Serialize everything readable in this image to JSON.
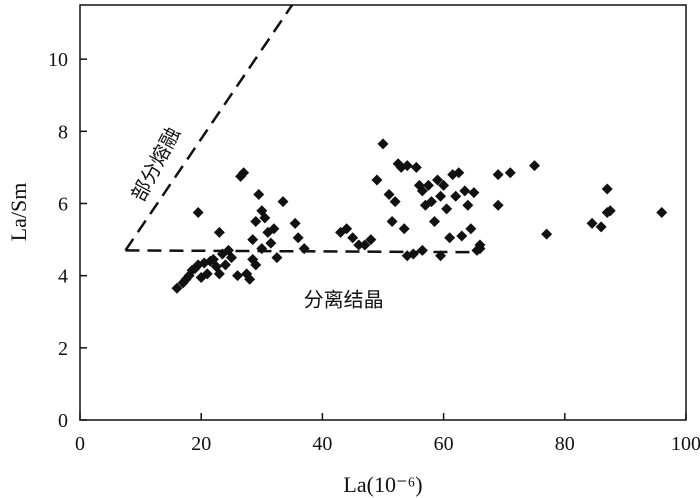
{
  "chart_data": {
    "type": "scatter",
    "xlabel": "La(10⁻⁶)",
    "ylabel": "La/Sm",
    "xlim": [
      0,
      100
    ],
    "ylim": [
      0,
      11.5
    ],
    "x_ticks": [
      "0",
      "20",
      "40",
      "60",
      "80",
      "100"
    ],
    "y_ticks": [
      "0",
      "2",
      "4",
      "6",
      "8",
      "10"
    ],
    "x_tick_values": [
      0,
      20,
      40,
      60,
      80,
      100
    ],
    "y_tick_values": [
      0,
      2,
      4,
      6,
      8,
      10
    ],
    "marker_color": "#111111",
    "reference_lines": [
      {
        "label": "部分熔融",
        "style": "dashed",
        "points": [
          [
            7.5,
            4.7
          ],
          [
            35,
            11.5
          ]
        ]
      },
      {
        "label": "分离结晶",
        "style": "dashed",
        "points": [
          [
            7.5,
            4.7
          ],
          [
            65,
            4.65
          ]
        ]
      }
    ],
    "annotations": [
      {
        "text": "部分熔融",
        "x": 13.5,
        "y": 7.0,
        "rotate": -62
      },
      {
        "text": "分离结晶",
        "x": 43.5,
        "y": 3.15,
        "rotate": 0
      }
    ],
    "points": [
      [
        16,
        3.65
      ],
      [
        17,
        3.8
      ],
      [
        17.5,
        3.9
      ],
      [
        18,
        4.0
      ],
      [
        18.5,
        4.15
      ],
      [
        19,
        4.2
      ],
      [
        19.5,
        4.3
      ],
      [
        20,
        3.95
      ],
      [
        20.5,
        4.35
      ],
      [
        21,
        4.05
      ],
      [
        21.5,
        4.4
      ],
      [
        22,
        4.45
      ],
      [
        22.5,
        4.25
      ],
      [
        23,
        4.05
      ],
      [
        23.5,
        4.6
      ],
      [
        24,
        4.3
      ],
      [
        24.5,
        4.7
      ],
      [
        25,
        4.5
      ],
      [
        19.5,
        5.75
      ],
      [
        23,
        5.2
      ],
      [
        26,
        4.0
      ],
      [
        26.5,
        6.75
      ],
      [
        27,
        6.85
      ],
      [
        27.5,
        4.05
      ],
      [
        28,
        3.9
      ],
      [
        28.5,
        4.45
      ],
      [
        28.5,
        5.0
      ],
      [
        29,
        4.3
      ],
      [
        29,
        5.5
      ],
      [
        29.5,
        6.25
      ],
      [
        30,
        5.8
      ],
      [
        30,
        4.75
      ],
      [
        30.5,
        5.6
      ],
      [
        31,
        5.2
      ],
      [
        31.5,
        4.9
      ],
      [
        32,
        5.3
      ],
      [
        32.5,
        4.5
      ],
      [
        33.5,
        6.05
      ],
      [
        35.5,
        5.45
      ],
      [
        36,
        5.05
      ],
      [
        37,
        4.75
      ],
      [
        43,
        5.2
      ],
      [
        44,
        5.3
      ],
      [
        45,
        5.05
      ],
      [
        46,
        4.85
      ],
      [
        47,
        4.85
      ],
      [
        48,
        5.0
      ],
      [
        49,
        6.65
      ],
      [
        50,
        7.65
      ],
      [
        51,
        6.25
      ],
      [
        51.5,
        5.5
      ],
      [
        52,
        6.05
      ],
      [
        52.5,
        7.1
      ],
      [
        53,
        7.0
      ],
      [
        53.5,
        5.3
      ],
      [
        54,
        7.05
      ],
      [
        54,
        4.55
      ],
      [
        55,
        4.6
      ],
      [
        55.5,
        7.0
      ],
      [
        56,
        6.5
      ],
      [
        56.5,
        6.35
      ],
      [
        56.5,
        4.7
      ],
      [
        57,
        5.95
      ],
      [
        57.5,
        6.5
      ],
      [
        58,
        6.05
      ],
      [
        58.5,
        5.5
      ],
      [
        59,
        6.65
      ],
      [
        59.5,
        6.2
      ],
      [
        59.5,
        4.55
      ],
      [
        60,
        6.5
      ],
      [
        60.5,
        5.85
      ],
      [
        61,
        5.05
      ],
      [
        61.5,
        6.8
      ],
      [
        62,
        6.2
      ],
      [
        62.5,
        6.85
      ],
      [
        63,
        5.1
      ],
      [
        63.5,
        6.35
      ],
      [
        64,
        5.95
      ],
      [
        64.5,
        5.3
      ],
      [
        65,
        6.3
      ],
      [
        65.5,
        4.7
      ],
      [
        66,
        4.85
      ],
      [
        66,
        4.75
      ],
      [
        69,
        6.8
      ],
      [
        69,
        5.95
      ],
      [
        71,
        6.85
      ],
      [
        75,
        7.05
      ],
      [
        77,
        5.15
      ],
      [
        84.5,
        5.45
      ],
      [
        86,
        5.35
      ],
      [
        87,
        6.4
      ],
      [
        87,
        5.75
      ],
      [
        87.5,
        5.8
      ],
      [
        96,
        5.75
      ]
    ]
  }
}
